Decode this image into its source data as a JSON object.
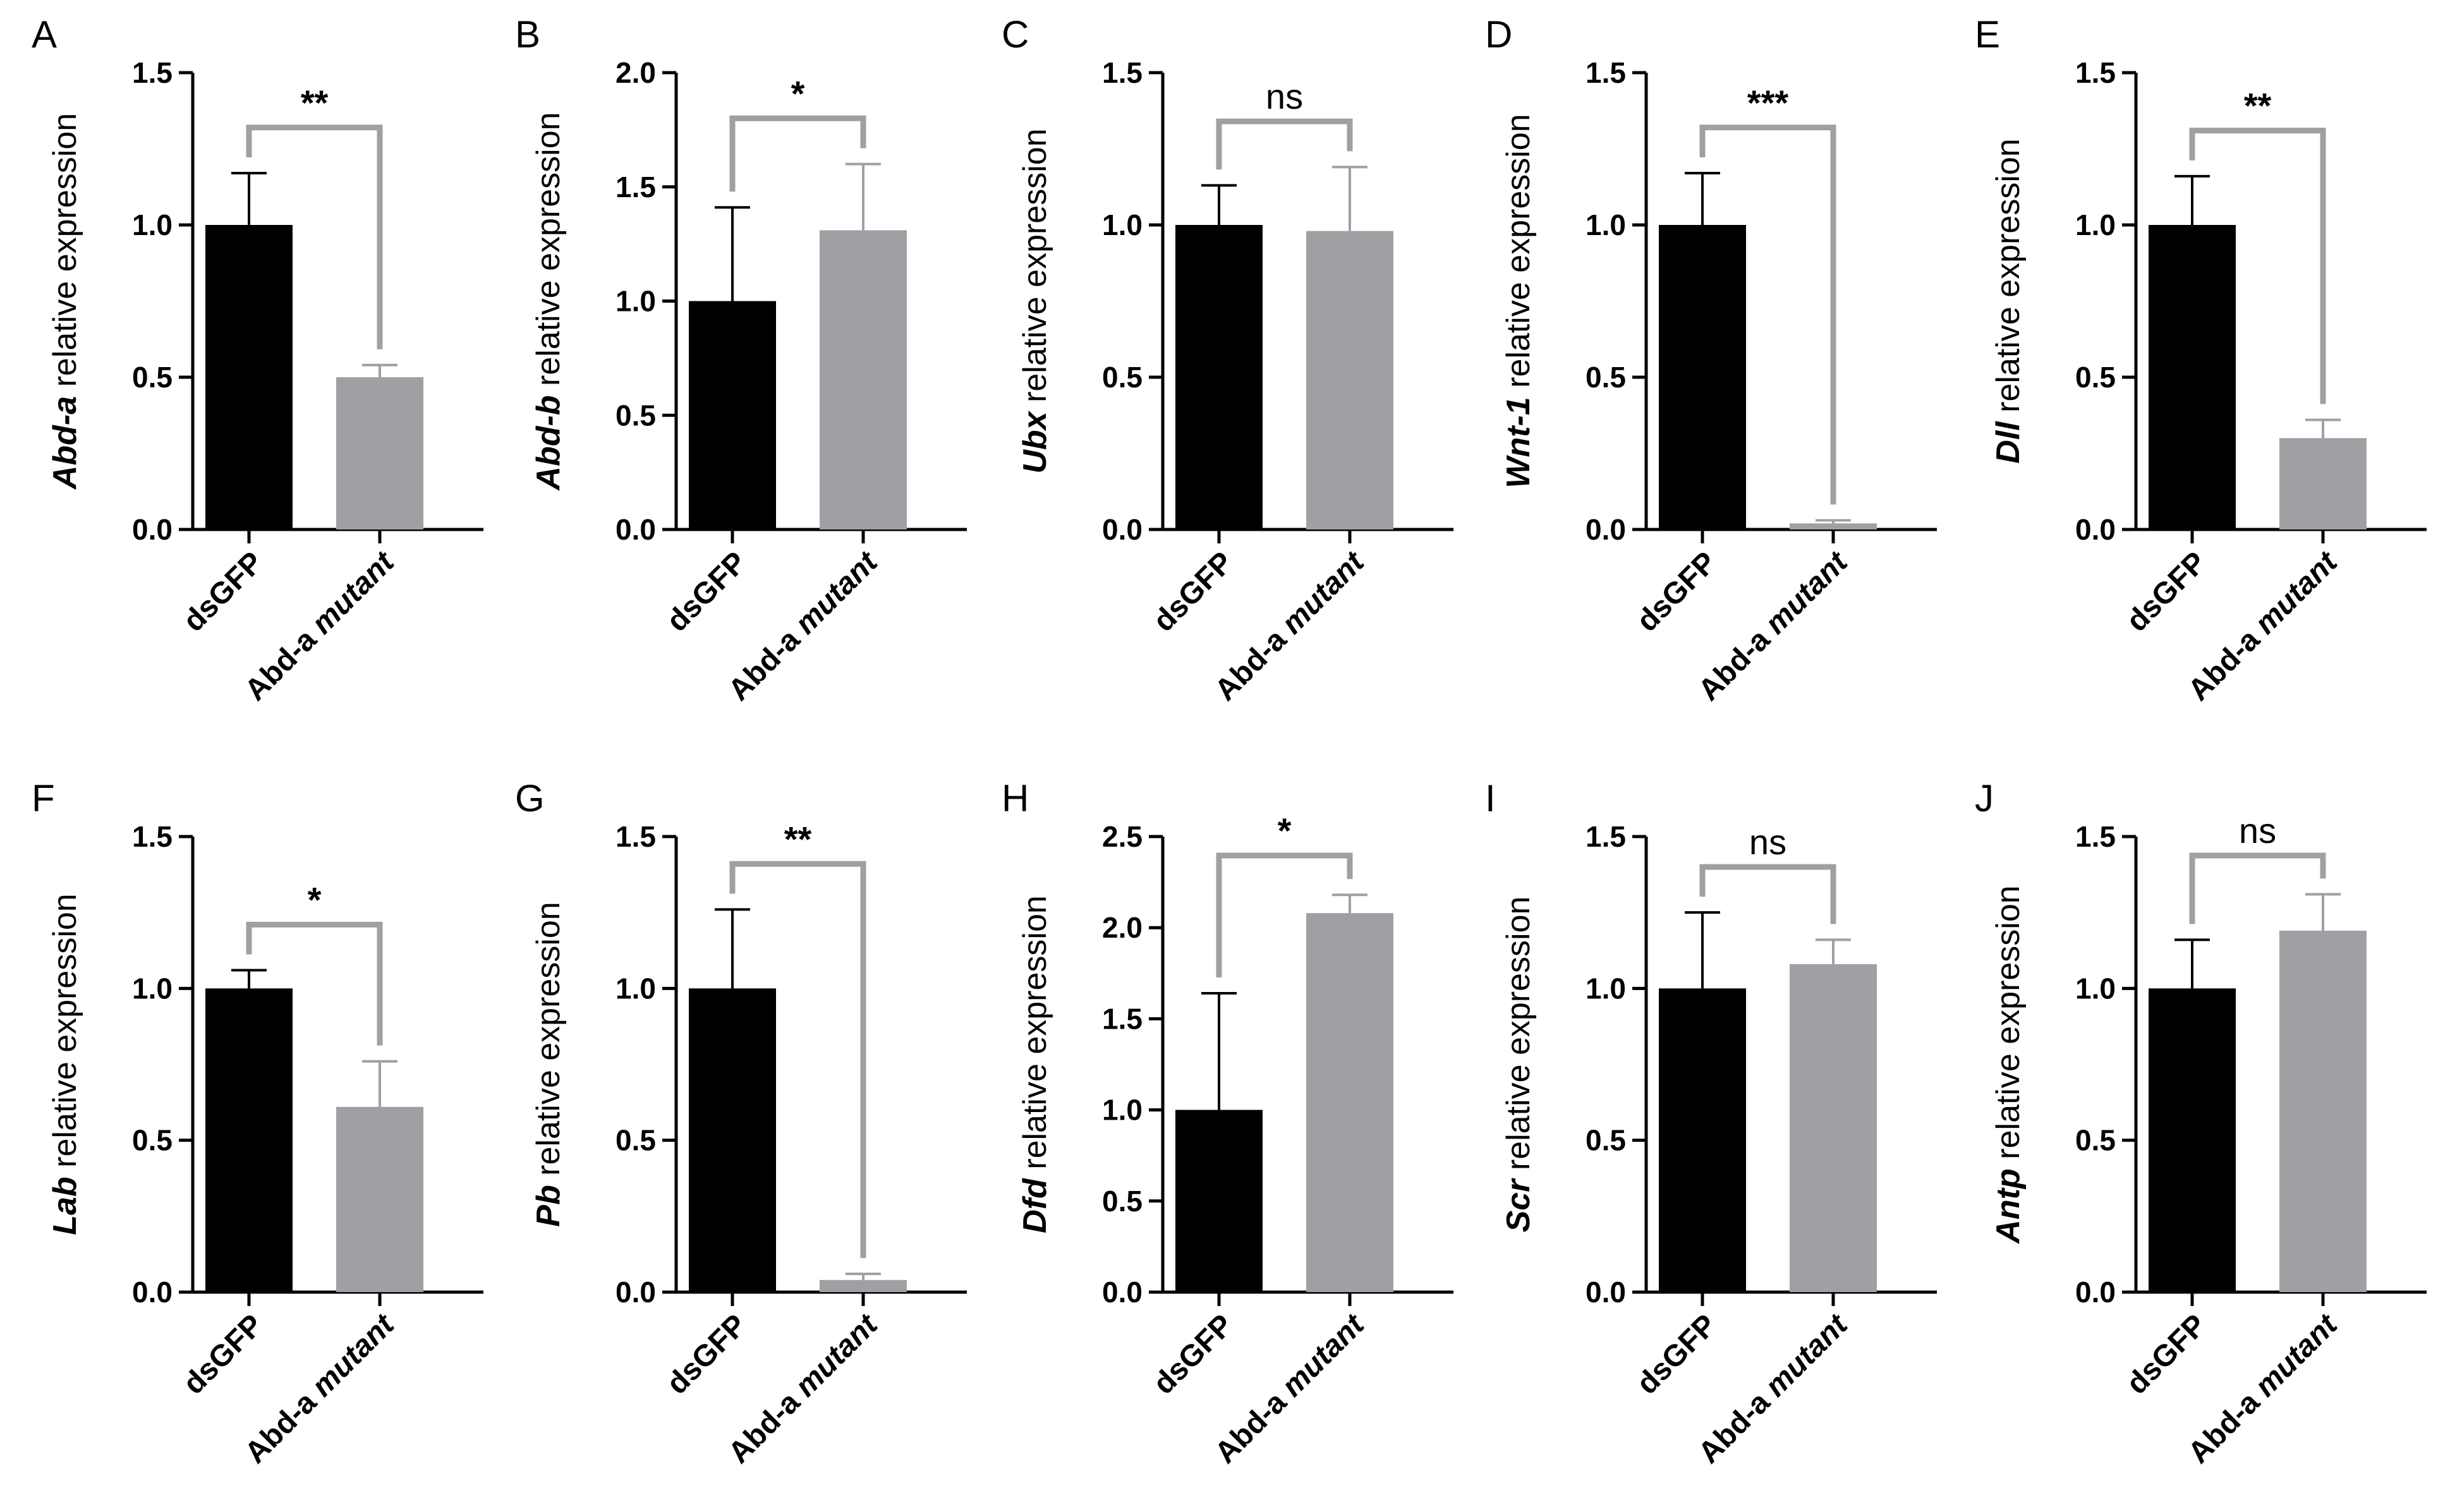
{
  "figure": {
    "y_suffix": " relative expression",
    "colors": {
      "control": "#000000",
      "mutant": "#a0a0a4",
      "bracket": "#a0a0a4"
    }
  },
  "chart_data": [
    {
      "panel": "A",
      "type": "bar",
      "gene": "Abd-a",
      "categories": [
        "dsGFP",
        "Abd-a mutant"
      ],
      "values": [
        1.0,
        0.5
      ],
      "errors": [
        0.17,
        0.04
      ],
      "ylim": [
        0,
        1.5
      ],
      "yticks": [
        "0.0",
        "0.5",
        "1.0",
        "1.5"
      ],
      "significance": "**"
    },
    {
      "panel": "B",
      "type": "bar",
      "gene": "Abd-b",
      "categories": [
        "dsGFP",
        "Abd-a mutant"
      ],
      "values": [
        1.0,
        1.31
      ],
      "errors": [
        0.41,
        0.29
      ],
      "ylim": [
        0,
        2.0
      ],
      "yticks": [
        "0.0",
        "0.5",
        "1.0",
        "1.5",
        "2.0"
      ],
      "significance": "*"
    },
    {
      "panel": "C",
      "type": "bar",
      "gene": "Ubx",
      "categories": [
        "dsGFP",
        "Abd-a mutant"
      ],
      "values": [
        1.0,
        0.98
      ],
      "errors": [
        0.13,
        0.21
      ],
      "ylim": [
        0,
        1.5
      ],
      "yticks": [
        "0.0",
        "0.5",
        "1.0",
        "1.5"
      ],
      "significance": "ns"
    },
    {
      "panel": "D",
      "type": "bar",
      "gene": "Wnt-1",
      "categories": [
        "dsGFP",
        "Abd-a mutant"
      ],
      "values": [
        1.0,
        0.02
      ],
      "errors": [
        0.17,
        0.01
      ],
      "ylim": [
        0,
        1.5
      ],
      "yticks": [
        "0.0",
        "0.5",
        "1.0",
        "1.5"
      ],
      "significance": "***"
    },
    {
      "panel": "E",
      "type": "bar",
      "gene": "Dll",
      "categories": [
        "dsGFP",
        "Abd-a mutant"
      ],
      "values": [
        1.0,
        0.3
      ],
      "errors": [
        0.16,
        0.06
      ],
      "ylim": [
        0,
        1.5
      ],
      "yticks": [
        "0.0",
        "0.5",
        "1.0",
        "1.5"
      ],
      "significance": "**"
    },
    {
      "panel": "F",
      "type": "bar",
      "gene": "Lab",
      "categories": [
        "dsGFP",
        "Abd-a mutant"
      ],
      "values": [
        1.0,
        0.61
      ],
      "errors": [
        0.06,
        0.15
      ],
      "ylim": [
        0,
        1.5
      ],
      "yticks": [
        "0.0",
        "0.5",
        "1.0",
        "1.5"
      ],
      "significance": "*"
    },
    {
      "panel": "G",
      "type": "bar",
      "gene": "Pb",
      "categories": [
        "dsGFP",
        "Abd-a mutant"
      ],
      "values": [
        1.0,
        0.04
      ],
      "errors": [
        0.26,
        0.02
      ],
      "ylim": [
        0,
        1.5
      ],
      "yticks": [
        "0.0",
        "0.5",
        "1.0",
        "1.5"
      ],
      "significance": "**"
    },
    {
      "panel": "H",
      "type": "bar",
      "gene": "Dfd",
      "categories": [
        "dsGFP",
        "Abd-a mutant"
      ],
      "values": [
        1.0,
        2.08
      ],
      "errors": [
        0.64,
        0.1
      ],
      "ylim": [
        0,
        2.5
      ],
      "yticks": [
        "0.0",
        "0.5",
        "1.0",
        "1.5",
        "2.0",
        "2.5"
      ],
      "significance": "*"
    },
    {
      "panel": "I",
      "type": "bar",
      "gene": "Scr",
      "categories": [
        "dsGFP",
        "Abd-a mutant"
      ],
      "values": [
        1.0,
        1.08
      ],
      "errors": [
        0.25,
        0.08
      ],
      "ylim": [
        0,
        1.5
      ],
      "yticks": [
        "0.0",
        "0.5",
        "1.0",
        "1.5"
      ],
      "significance": "ns"
    },
    {
      "panel": "J",
      "type": "bar",
      "gene": "Antp",
      "categories": [
        "dsGFP",
        "Abd-a mutant"
      ],
      "values": [
        1.0,
        1.19
      ],
      "errors": [
        0.16,
        0.12
      ],
      "ylim": [
        0,
        1.5
      ],
      "yticks": [
        "0.0",
        "0.5",
        "1.0",
        "1.5"
      ],
      "significance": "ns"
    }
  ]
}
